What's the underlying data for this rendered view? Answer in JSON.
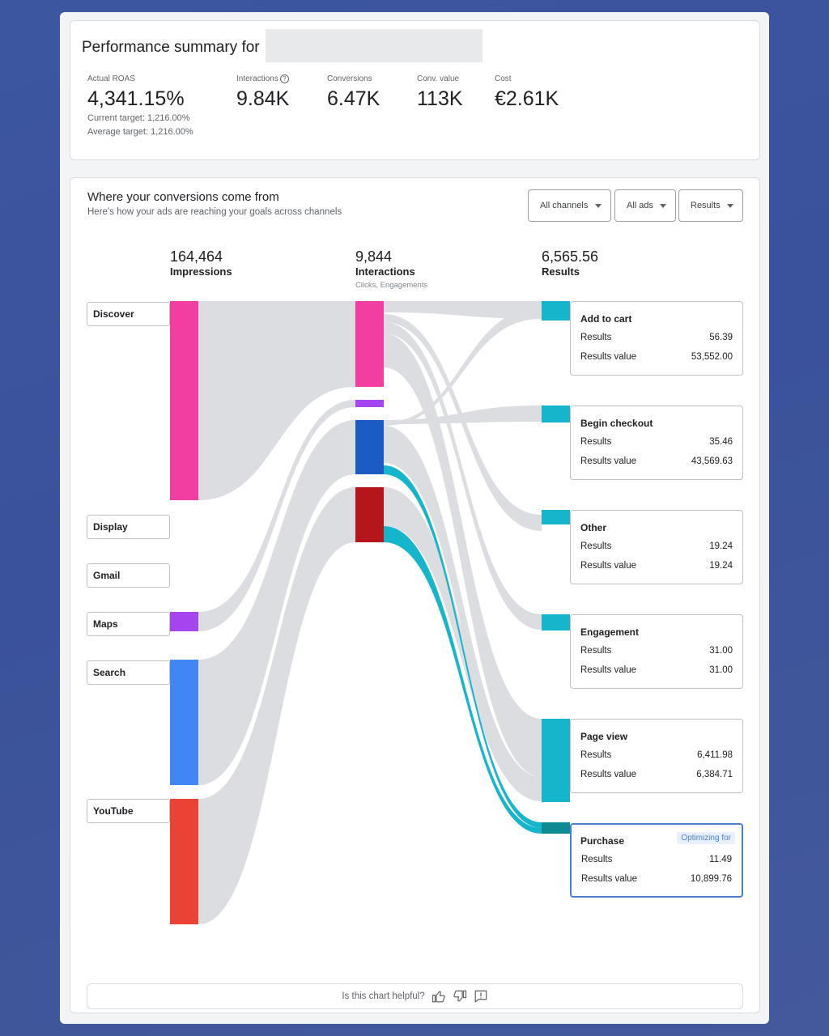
{
  "summary": {
    "title": "Performance summary for",
    "metrics": [
      {
        "label": "Actual ROAS",
        "value": "4,341.15%",
        "has_help": false
      },
      {
        "label": "Interactions",
        "value": "9.84K",
        "has_help": true
      },
      {
        "label": "Conversions",
        "value": "6.47K",
        "has_help": false
      },
      {
        "label": "Conv. value",
        "value": "113K",
        "has_help": false
      },
      {
        "label": "Cost",
        "value": "€2.61K",
        "has_help": false
      }
    ],
    "current_target": "Current target: 1,216.00%",
    "average_target": "Average target: 1,216.00%"
  },
  "sankey": {
    "title": "Where your conversions come from",
    "subtitle": "Here's how your ads are reaching your goals across channels",
    "filters": [
      "All channels",
      "All ads",
      "Results"
    ],
    "columns": [
      {
        "number": "164,464",
        "name": "Impressions",
        "sub": ""
      },
      {
        "number": "9,844",
        "name": "Interactions",
        "sub": "Clicks, Engagements"
      },
      {
        "number": "6,565.56",
        "name": "Results",
        "sub": ""
      }
    ],
    "sources": [
      {
        "name": "Discover",
        "color": "#f23ea0"
      },
      {
        "name": "Display",
        "color": ""
      },
      {
        "name": "Gmail",
        "color": ""
      },
      {
        "name": "Maps",
        "color": "#a445ef"
      },
      {
        "name": "Search",
        "color": "#4285f4"
      },
      {
        "name": "YouTube",
        "color": "#ea4335"
      }
    ],
    "interaction_colors": [
      "#f23ea0",
      "#a445ef",
      "#1a5cc4",
      "#b5161b"
    ],
    "results": [
      {
        "name": "Add to cart",
        "results_label": "Results",
        "results": "56.39",
        "value_label": "Results value",
        "value": "53,552.00",
        "optimizing": false
      },
      {
        "name": "Begin checkout",
        "results_label": "Results",
        "results": "35.46",
        "value_label": "Results value",
        "value": "43,569.63",
        "optimizing": false
      },
      {
        "name": "Other",
        "results_label": "Results",
        "results": "19.24",
        "value_label": "Results value",
        "value": "19.24",
        "optimizing": false
      },
      {
        "name": "Engagement",
        "results_label": "Results",
        "results": "31.00",
        "value_label": "Results value",
        "value": "31.00",
        "optimizing": false
      },
      {
        "name": "Page view",
        "results_label": "Results",
        "results": "6,411.98",
        "value_label": "Results value",
        "value": "6,384.71",
        "optimizing": false
      },
      {
        "name": "Purchase",
        "results_label": "Results",
        "results": "11.49",
        "value_label": "Results value",
        "value": "10,899.76",
        "optimizing": true
      }
    ],
    "optimizing_badge": "Optimizing for",
    "result_color": "#15b5cc",
    "purchase_color": "#0d8a92",
    "flow_color": "#dcdde0",
    "highlight_flow_color": "#15b5cc"
  },
  "feedback": {
    "question": "Is this chart helpful?",
    "icons": [
      "thumb-up-icon",
      "thumb-down-icon",
      "feedback-icon"
    ]
  }
}
